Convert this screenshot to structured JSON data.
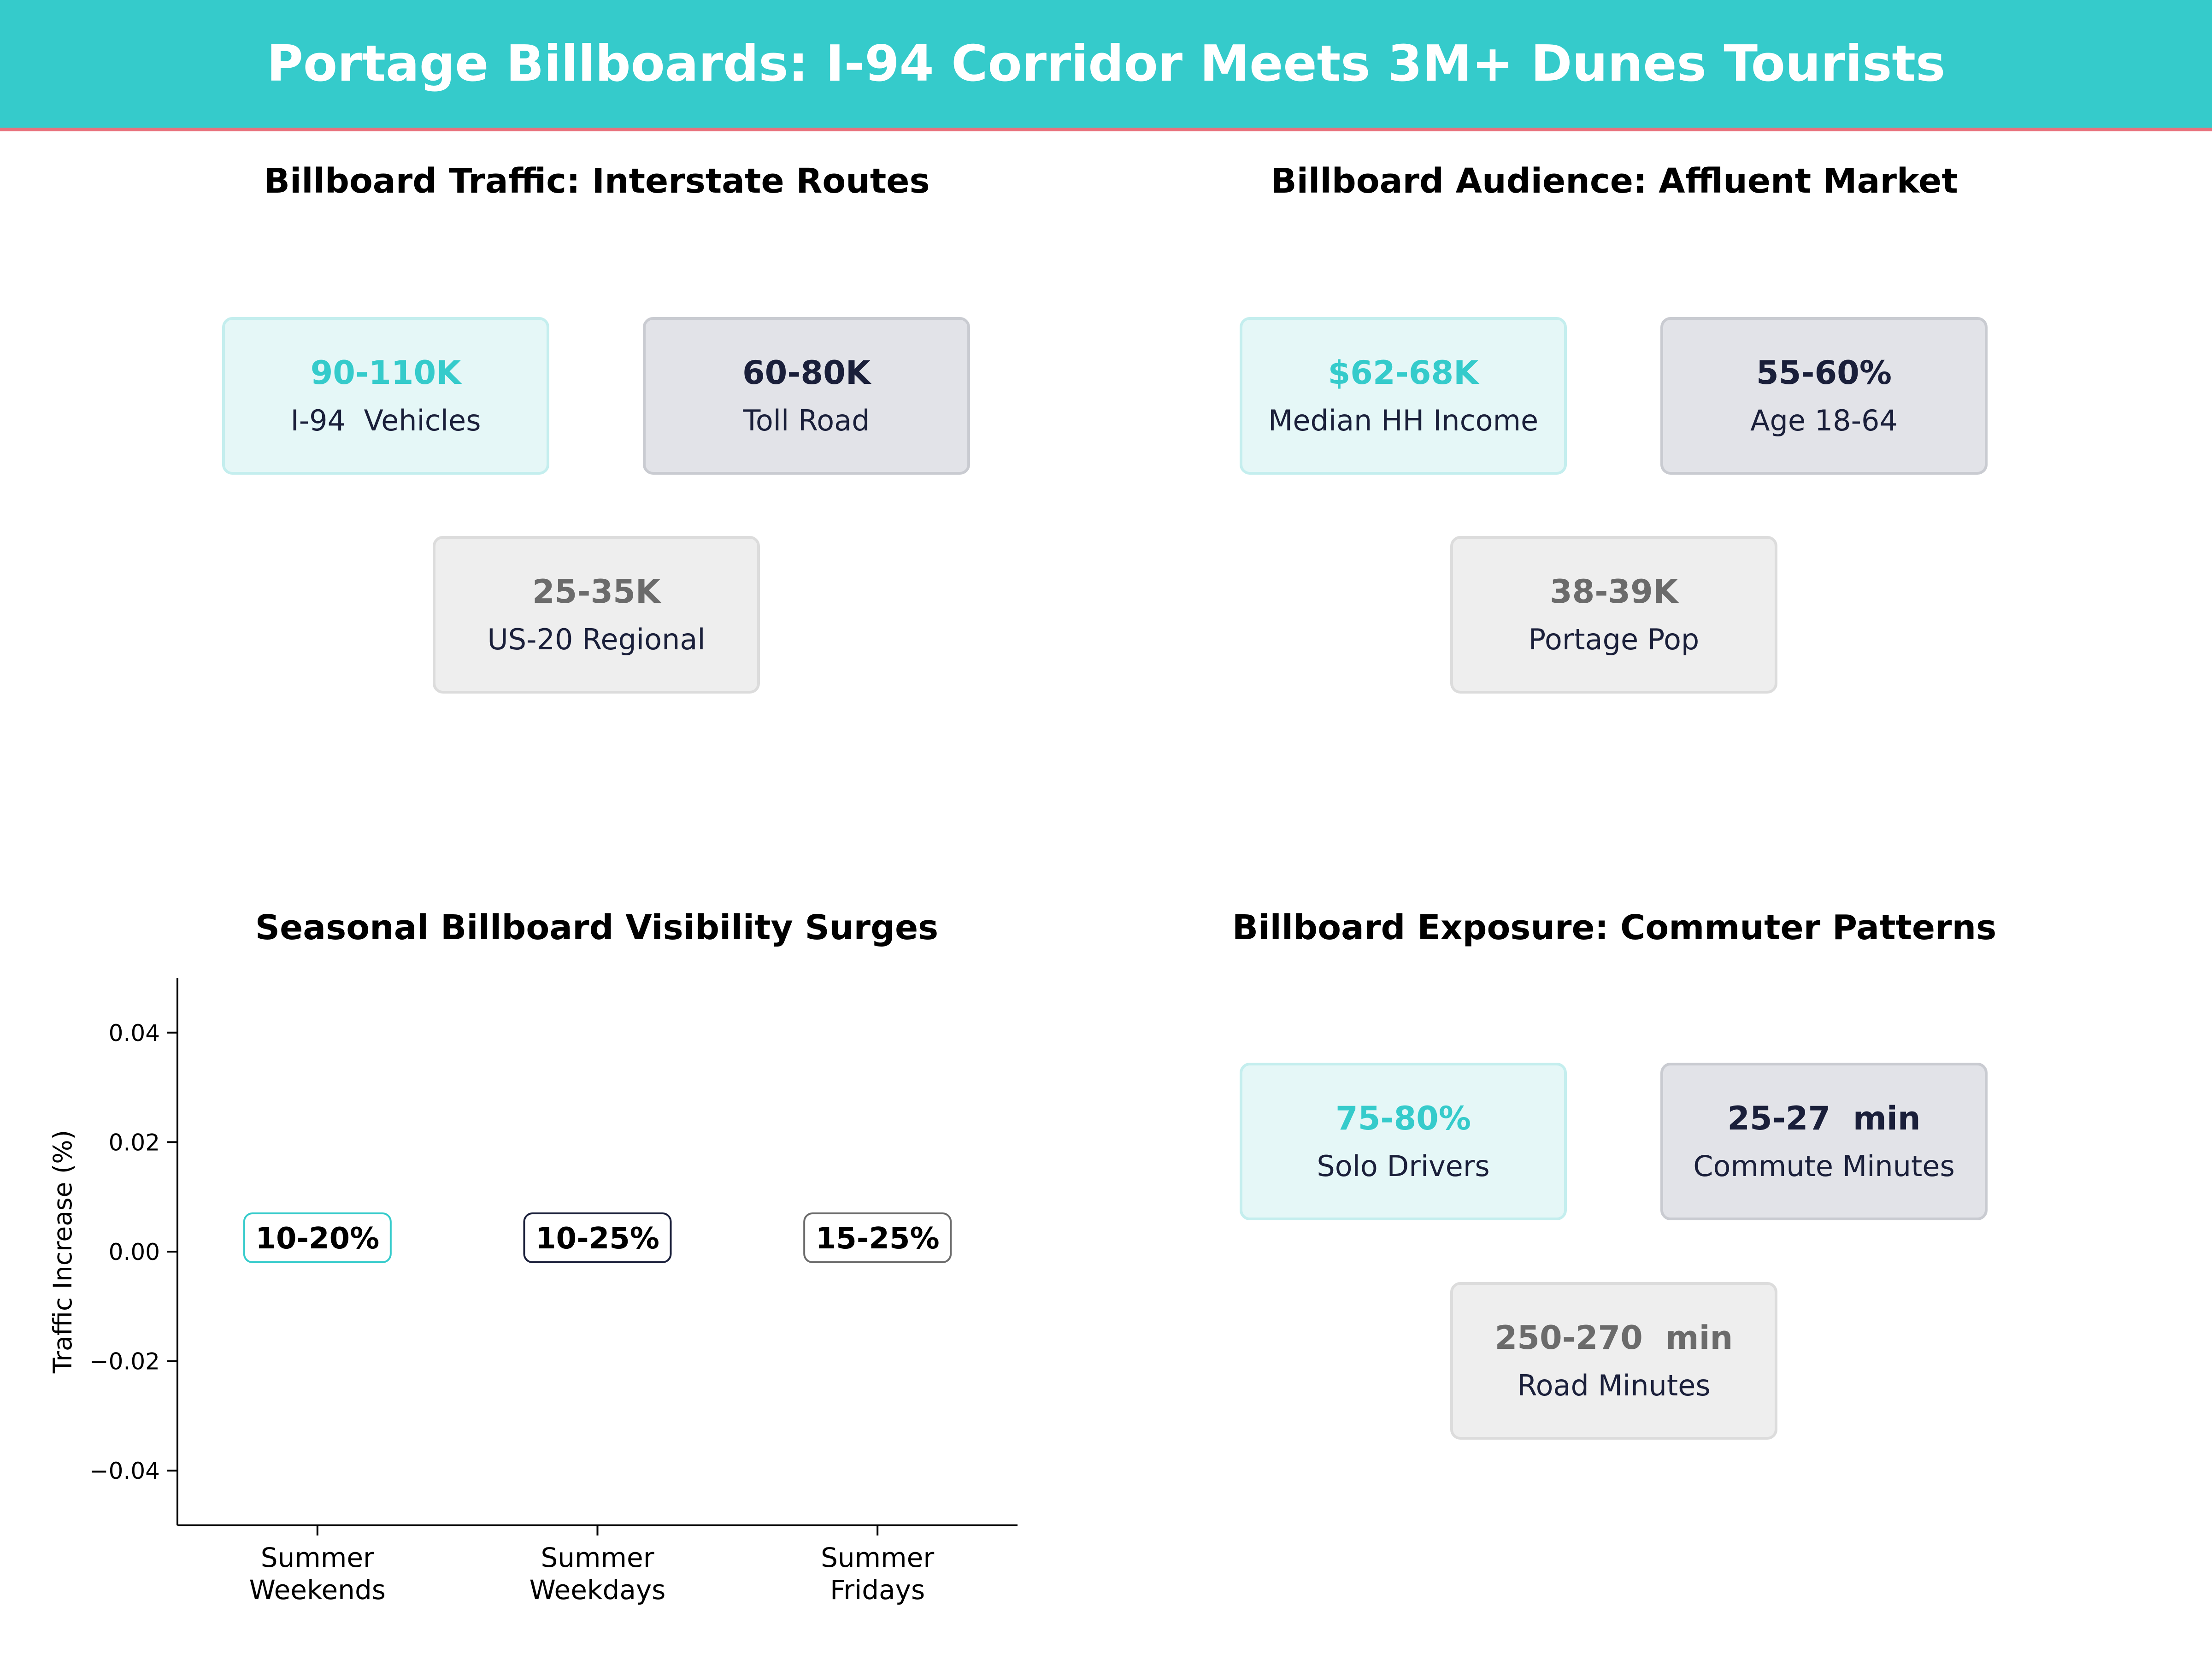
{
  "header": {
    "title": "Portage Billboards: I-94 Corridor Meets 3M+ Dunes Tourists"
  },
  "panels": {
    "traffic": {
      "title": "Billboard Traffic: Interstate Routes",
      "cards": [
        {
          "value": "90-110K",
          "label": "I-94  Vehicles"
        },
        {
          "value": "60-80K",
          "label": "Toll Road"
        },
        {
          "value": "25-35K",
          "label": "US-20 Regional"
        }
      ]
    },
    "audience": {
      "title": "Billboard Audience: Affluent Market",
      "cards": [
        {
          "value": "$62-68K",
          "label": "Median HH Income"
        },
        {
          "value": "55-60%",
          "label": "Age 18-64"
        },
        {
          "value": "38-39K",
          "label": "Portage Pop"
        }
      ]
    },
    "seasonal": {
      "title": "Seasonal Billboard Visibility Surges"
    },
    "exposure": {
      "title": "Billboard Exposure: Commuter Patterns",
      "cards": [
        {
          "value": "75-80%",
          "label": "Solo Drivers"
        },
        {
          "value": "25-27  min",
          "label": "Commute Minutes"
        },
        {
          "value": "250-270  min",
          "label": "Road Minutes"
        }
      ]
    }
  },
  "colors": {
    "teal": "#35cbcb",
    "navy": "#1a1f3a",
    "gray": "#6b6b6b",
    "accent_line": "#e8717c"
  },
  "chart_data": {
    "type": "bar",
    "title": "Seasonal Billboard Visibility Surges",
    "categories": [
      "Summer\nWeekends",
      "Summer\nWeekdays",
      "Summer\nFridays"
    ],
    "values": [
      0,
      0,
      0
    ],
    "labels": [
      "10-20%",
      "10-25%",
      "15-25%"
    ],
    "label_colors": [
      "#35cbcb",
      "#1a1f3a",
      "#6b6b6b"
    ],
    "xlabel": "",
    "ylabel": "Traffic Increase (%)",
    "ylim": [
      -0.05,
      0.05
    ],
    "yticks": [
      "0.04",
      "0.02",
      "0.00",
      "−0.02",
      "−0.04"
    ],
    "ytick_values": [
      0.04,
      0.02,
      0.0,
      -0.02,
      -0.04
    ],
    "grid": false
  }
}
